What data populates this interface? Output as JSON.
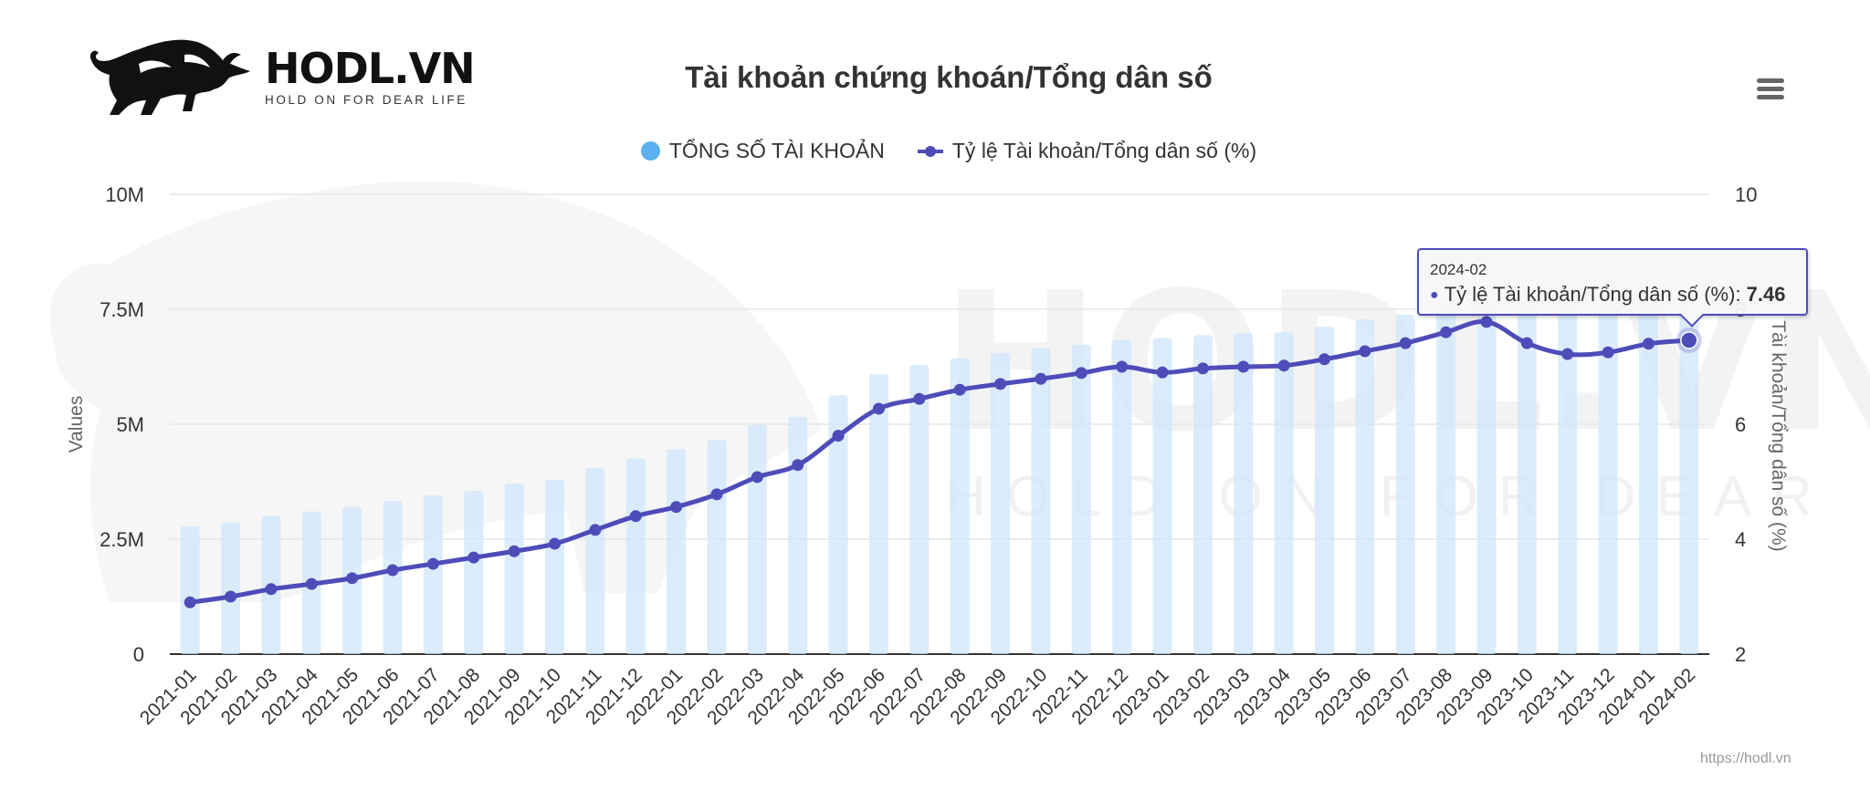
{
  "brand": {
    "name": "HODL.VN",
    "tagline": "HOLD ON FOR DEAR LIFE"
  },
  "menu": {
    "icon": "hamburger-menu-icon"
  },
  "credits": {
    "label": "https://hodl.vn"
  },
  "colors": {
    "bar": "#cfe7fb",
    "bar_legend": "#5bb0f0",
    "line": "#4e4cb8",
    "grid": "#e6e6e6",
    "axis": "#333333",
    "watermark": "#ececec"
  },
  "legend": [
    {
      "label": "TỔNG SỐ TÀI KHOẢN",
      "type": "bar"
    },
    {
      "label": "Tỷ lệ Tài khoản/Tổng dân số (%)",
      "type": "line"
    }
  ],
  "tooltip": {
    "header": "2024-02",
    "series": "Tỷ lệ Tài khoản/Tổng dân số (%)",
    "separator": ": ",
    "value": "7.46"
  },
  "chart_data": {
    "type": "bar",
    "title": "Tài khoản chứng khoán/Tổng dân số",
    "xlabel": "",
    "ylabel": "Values",
    "ylabel_right": "Tài khoản/Tổng dân số (%)",
    "ylim": [
      0,
      10000000
    ],
    "ylim_right": [
      2,
      10
    ],
    "yticks": [
      0,
      2500000,
      5000000,
      7500000,
      10000000
    ],
    "ytick_labels": [
      "0",
      "2.5M",
      "5M",
      "7.5M",
      "10M"
    ],
    "yticks_right": [
      2,
      4,
      6,
      8,
      10
    ],
    "ytick_labels_right": [
      "2",
      "4",
      "6",
      "8",
      "10"
    ],
    "grid": true,
    "legend_position": "top",
    "categories": [
      "2021-01",
      "2021-02",
      "2021-03",
      "2021-04",
      "2021-05",
      "2021-06",
      "2021-07",
      "2021-08",
      "2021-09",
      "2021-10",
      "2021-11",
      "2021-12",
      "2022-01",
      "2022-02",
      "2022-03",
      "2022-04",
      "2022-05",
      "2022-06",
      "2022-07",
      "2022-08",
      "2022-09",
      "2022-10",
      "2022-11",
      "2022-12",
      "2023-01",
      "2023-02",
      "2023-03",
      "2023-04",
      "2023-05",
      "2023-06",
      "2023-07",
      "2023-08",
      "2023-09",
      "2023-10",
      "2023-11",
      "2023-12",
      "2024-01",
      "2024-02"
    ],
    "series": [
      {
        "name": "TỔNG SỐ TÀI KHOẢN",
        "type": "bar",
        "axis": "left",
        "values": [
          2780000,
          2860000,
          3000000,
          3100000,
          3200000,
          3330000,
          3450000,
          3550000,
          3710000,
          3790000,
          4050000,
          4250000,
          4460000,
          4660000,
          4980000,
          5160000,
          5630000,
          6090000,
          6290000,
          6430000,
          6550000,
          6650000,
          6730000,
          6830000,
          6870000,
          6940000,
          6980000,
          7000000,
          7120000,
          7280000,
          7380000,
          7480000,
          7580000,
          7520000,
          7520000,
          7560000,
          7600000,
          7680000
        ]
      },
      {
        "name": "Tỷ lệ Tài khoản/Tổng dân số (%)",
        "type": "line",
        "axis": "right",
        "values": [
          2.9,
          3.0,
          3.13,
          3.22,
          3.32,
          3.46,
          3.57,
          3.68,
          3.79,
          3.92,
          4.16,
          4.4,
          4.56,
          4.78,
          5.08,
          5.29,
          5.8,
          6.27,
          6.44,
          6.6,
          6.7,
          6.79,
          6.89,
          7.0,
          6.9,
          6.97,
          7.0,
          7.02,
          7.13,
          7.27,
          7.41,
          7.6,
          7.78,
          7.41,
          7.22,
          7.25,
          7.4,
          7.46
        ]
      }
    ],
    "highlighted_point": {
      "category": "2024-02",
      "series": "Tỷ lệ Tài khoản/Tổng dân số (%)",
      "value": 7.46
    }
  }
}
